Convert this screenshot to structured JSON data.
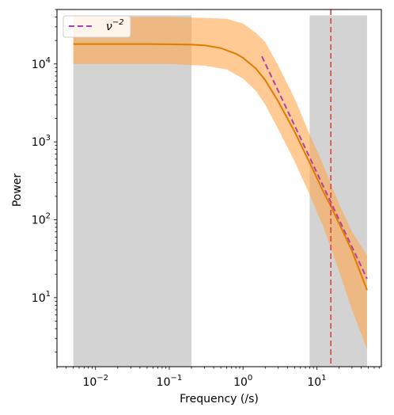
{
  "chart_data": {
    "type": "line",
    "title": "",
    "xlabel": "Frequency (/s)",
    "ylabel": "Power",
    "xscale": "log",
    "yscale": "log",
    "xlim": [
      0.003,
      75
    ],
    "ylim": [
      1.3,
      50000
    ],
    "x_ticks": [
      {
        "value": 0.01,
        "base": "10",
        "exp": "−2"
      },
      {
        "value": 0.1,
        "base": "10",
        "exp": "−1"
      },
      {
        "value": 1,
        "base": "10",
        "exp": "0"
      },
      {
        "value": 10,
        "base": "10",
        "exp": "1"
      }
    ],
    "y_ticks": [
      {
        "value": 10,
        "base": "10",
        "exp": "1"
      },
      {
        "value": 100,
        "base": "10",
        "exp": "2"
      },
      {
        "value": 1000,
        "base": "10",
        "exp": "3"
      },
      {
        "value": 10000,
        "base": "10",
        "exp": "4"
      }
    ],
    "shaded_regions": [
      {
        "x": [
          0.005,
          0.2
        ],
        "y": [
          1.3,
          42000
        ],
        "color": "#d3d3d3"
      },
      {
        "x": [
          8,
          48
        ],
        "y": [
          1.3,
          42000
        ],
        "color": "#d3d3d3"
      }
    ],
    "band": {
      "color": "#ffa64d",
      "x": [
        0.005,
        0.1,
        0.3,
        0.6,
        1,
        1.5,
        2,
        3,
        5,
        8,
        12,
        16,
        20,
        30,
        48
      ],
      "lower": [
        10000,
        10000,
        9500,
        8500,
        6500,
        4500,
        3000,
        1450,
        560,
        210,
        85,
        40,
        22,
        7,
        2.2
      ],
      "upper": [
        40000,
        40000,
        39000,
        38000,
        33000,
        25000,
        19000,
        9500,
        3600,
        1250,
        530,
        270,
        160,
        70,
        35
      ]
    },
    "series": [
      {
        "color": "#e07b00",
        "style": "solid",
        "x": [
          0.005,
          0.01,
          0.05,
          0.1,
          0.2,
          0.3,
          0.5,
          0.8,
          1,
          1.5,
          2,
          3,
          5,
          8,
          12,
          16,
          20,
          30,
          48
        ],
        "y": [
          18000,
          18000,
          18000,
          17900,
          17700,
          17300,
          16000,
          13500,
          12000,
          8700,
          6200,
          3300,
          1350,
          540,
          240,
          140,
          90,
          40,
          12.5
        ]
      },
      {
        "name": "ν⁻²",
        "label_base": "ν",
        "label_exp": "−2",
        "color": "#b040b0",
        "style": "dashed",
        "x": [
          1.8,
          48
        ],
        "y": [
          12500,
          17.5
        ]
      }
    ],
    "vlines": [
      {
        "x": 15.5,
        "color": "#e04040",
        "style": "dashed"
      }
    ],
    "legend_position": "top-left",
    "grid": false
  }
}
